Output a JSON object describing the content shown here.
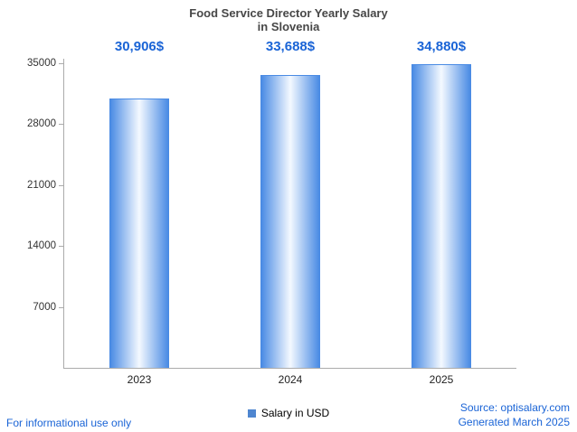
{
  "title": {
    "line1": "Food Service Director Yearly Salary",
    "line2": "in Slovenia"
  },
  "chart_data": {
    "type": "bar",
    "title": "Food Service Director Yearly Salary in Slovenia",
    "categories": [
      "2023",
      "2024",
      "2025"
    ],
    "values": [
      30906,
      33688,
      34880
    ],
    "value_labels": [
      "30,906$",
      "33,688$",
      "34,880$"
    ],
    "series_label": "Salary in USD",
    "yticks": [
      7000,
      14000,
      21000,
      28000,
      35000
    ],
    "ylim": [
      0,
      35520
    ],
    "grid": false,
    "legend_position": "bottom"
  },
  "footer": {
    "left": "For informational use only",
    "source": "Source: optisalary.com",
    "generated": "Generated March 2025"
  },
  "colors": {
    "bar_edge": "#4a8be4",
    "bar_center": "#f4f9ff",
    "value_label": "#1a64d6",
    "legend_marker": "#4f86d0",
    "link_blue": "#1a64d6",
    "title_text": "#474747",
    "axis": "#ababab"
  }
}
